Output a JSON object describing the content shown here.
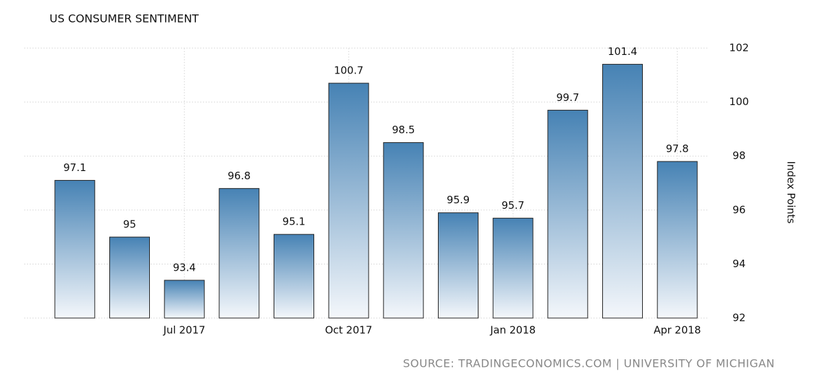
{
  "chart_data": {
    "type": "bar",
    "title": "US CONSUMER SENTIMENT",
    "y_axis_label": "Index Points",
    "source": "SOURCE: TRADINGECONOMICS.COM | UNIVERSITY OF MICHIGAN",
    "categories": [
      null,
      null,
      "Jul 2017",
      null,
      null,
      "Oct 2017",
      null,
      null,
      "Jan 2018",
      null,
      null,
      "Apr 2018"
    ],
    "values": [
      97.1,
      95,
      93.4,
      96.8,
      95.1,
      100.7,
      98.5,
      95.9,
      95.7,
      99.7,
      101.4,
      97.8
    ],
    "color": "#4682b4",
    "ylim": [
      92,
      102
    ],
    "yticks": [
      92,
      94,
      96,
      98,
      100,
      102
    ],
    "grid": true
  }
}
